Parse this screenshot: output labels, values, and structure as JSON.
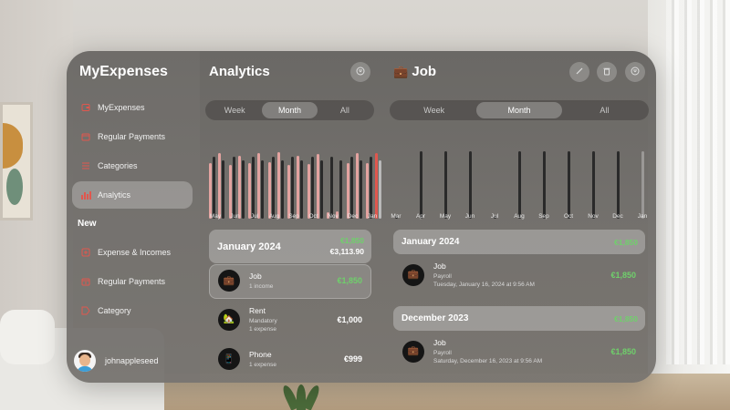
{
  "sidebar": {
    "app_title": "MyExpenses",
    "items": [
      {
        "label": "MyExpenses",
        "icon": "wallet-icon"
      },
      {
        "label": "Regular Payments",
        "icon": "calendar-icon"
      },
      {
        "label": "Categories",
        "icon": "list-icon"
      },
      {
        "label": "Analytics",
        "icon": "chart-icon",
        "active": true
      }
    ],
    "section_new": "New",
    "new_items": [
      {
        "label": "Expense & Incomes",
        "icon": "plus-doc-icon"
      },
      {
        "label": "Regular Payments",
        "icon": "calendar-plus-icon"
      },
      {
        "label": "Category",
        "icon": "tag-icon"
      }
    ],
    "username": "johnappleseed"
  },
  "analytics": {
    "title": "Analytics",
    "segments": [
      "Week",
      "Month",
      "All"
    ],
    "selected_segment": "Month",
    "months": [
      "May",
      "Jun",
      "Jul",
      "Aug",
      "Sep",
      "Oct",
      "Nov",
      "Dec",
      "Jan"
    ],
    "group": {
      "title": "January 2024",
      "income": "€1,850",
      "expense": "€3,113.90"
    },
    "rows": [
      {
        "title": "Job",
        "subtitle": "1 income",
        "amount": "€1,850",
        "icon": "briefcase-icon",
        "positive": true
      },
      {
        "title": "Rent",
        "subtitle": "Mandatory",
        "subtitle2": "1 expense",
        "amount": "€1,000",
        "icon": "house-icon",
        "positive": false
      },
      {
        "title": "Phone",
        "subtitle": "1 expense",
        "amount": "€999",
        "icon": "phone-icon",
        "positive": false
      }
    ]
  },
  "job": {
    "title": "Job",
    "title_icon": "briefcase-icon",
    "segments": [
      "Week",
      "Month",
      "All"
    ],
    "selected_segment": "Month",
    "months": [
      "Mar",
      "Apr",
      "May",
      "Jun",
      "Jul",
      "Aug",
      "Sep",
      "Oct",
      "Nov",
      "Dec",
      "Jan"
    ],
    "groups": [
      {
        "title": "January 2024",
        "total": "€1,850",
        "entry": {
          "title": "Job",
          "subtitle": "Payroll",
          "date": "Tuesday, January 16, 2024 at 9:56 AM",
          "amount": "€1,850"
        }
      },
      {
        "title": "December 2023",
        "total": "€1,850",
        "entry": {
          "title": "Job",
          "subtitle": "Payroll",
          "date": "Saturday, December 16, 2023 at 9:56 AM",
          "amount": "€1,850"
        }
      }
    ]
  },
  "colors": {
    "income_green": "#6fd06b",
    "expense_bar": "#e3a3a0",
    "accent_red": "#e0574e",
    "income_bar": "#2a2a2a"
  },
  "chart_data": [
    {
      "type": "bar",
      "title": "",
      "categories": [
        "May",
        "Jun",
        "Jul",
        "Aug",
        "Sep",
        "Oct",
        "Nov",
        "Dec",
        "Jan"
      ],
      "series": [
        {
          "values": [
            1850,
            1850,
            1850,
            1850,
            1850,
            1850,
            1850,
            1850,
            1850
          ]
        },
        {
          "values": [
            3100,
            3000,
            3100,
            3150,
            3000,
            3050,
            350,
            3100,
            3113.9
          ]
        }
      ]
    },
    {
      "type": "bar",
      "title": "",
      "categories": [
        "Mar",
        "Apr",
        "May",
        "Jun",
        "Jul",
        "Aug",
        "Sep",
        "Oct",
        "Nov",
        "Dec",
        "Jan"
      ],
      "series": [
        {
          "values": [
            100,
            1850,
            1850,
            1850,
            100,
            1850,
            1850,
            1850,
            1850,
            1850,
            1850
          ]
        }
      ]
    }
  ]
}
